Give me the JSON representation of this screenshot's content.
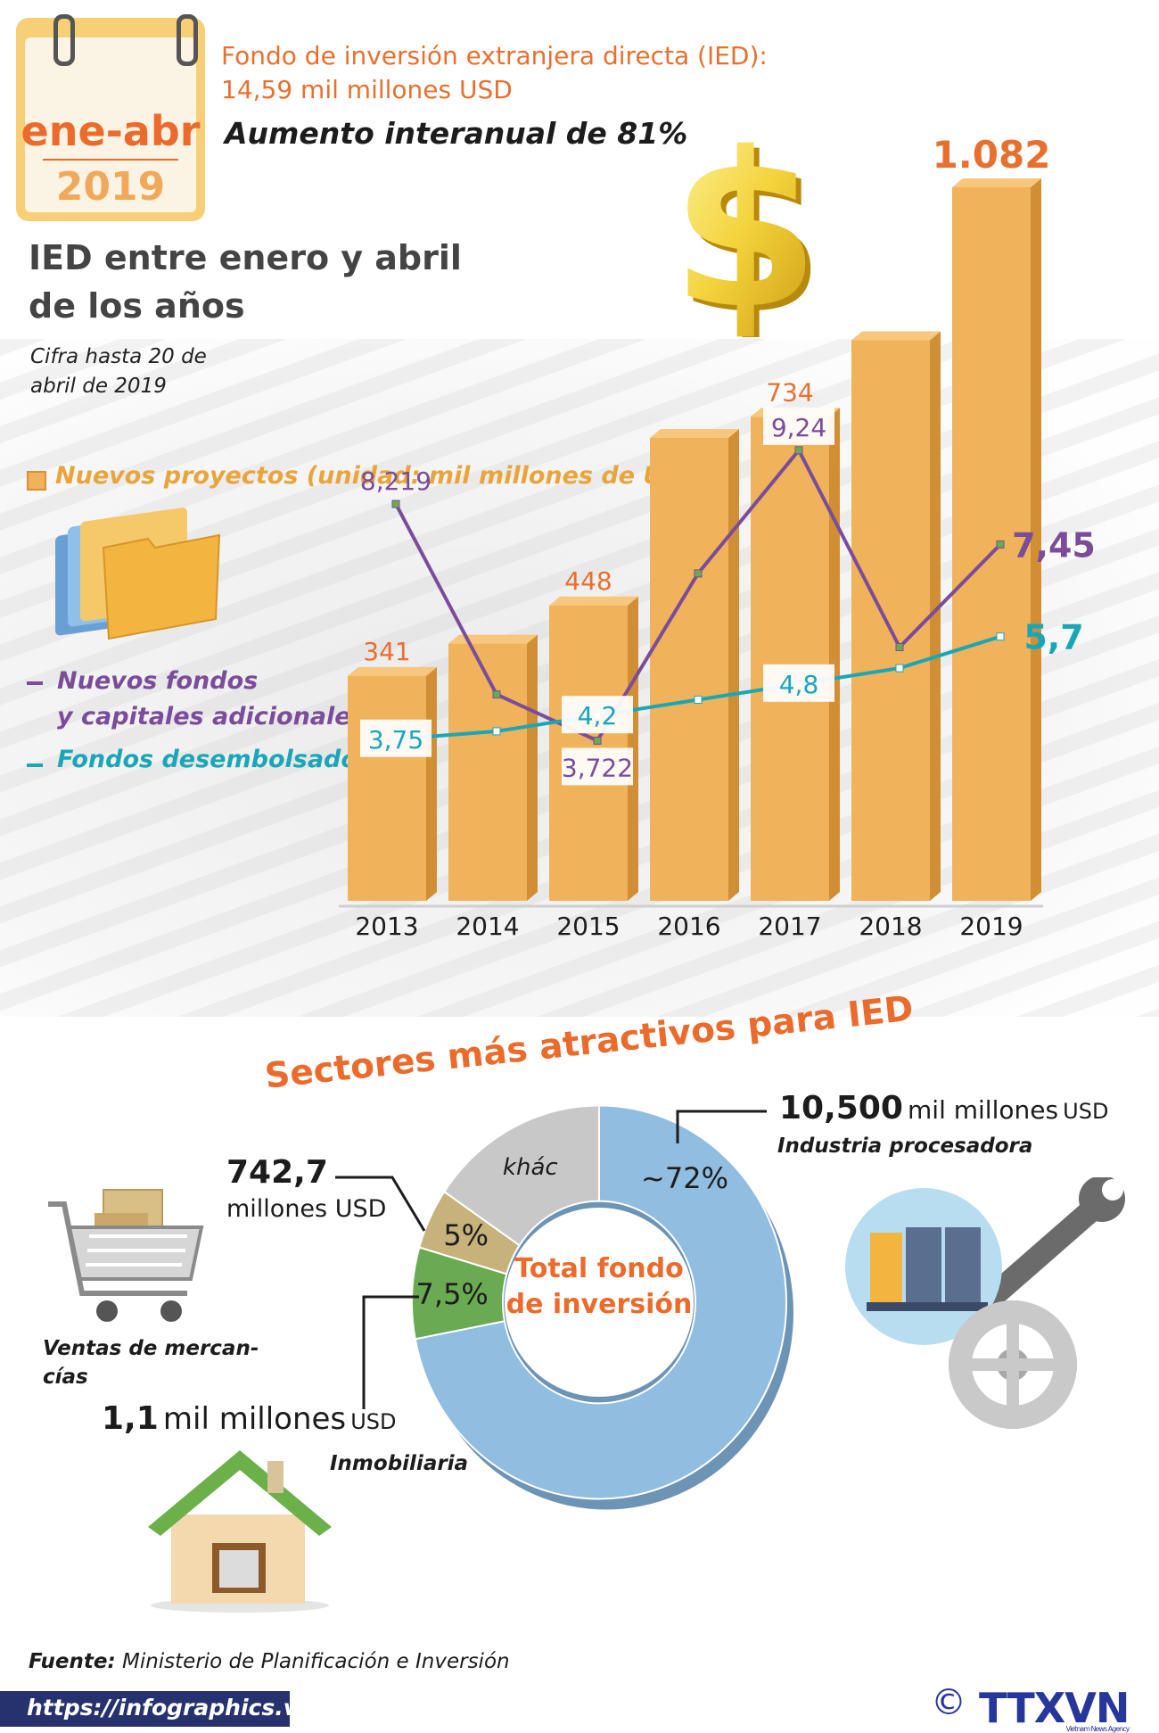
{
  "header": {
    "calendar_period": "ene-abr",
    "calendar_year": "2019",
    "fund_line1": "Fondo de inversión extranjera directa (IED):",
    "fund_line2": "14,59 mil millones USD",
    "increase": "Aumento interanual de 81%"
  },
  "chart_title_1": "IED entre enero y abril",
  "chart_title_2": "de los años",
  "note_1": "Cifra hasta 20 de",
  "note_2": "abril de 2019",
  "legend": {
    "bars": "Nuevos proyectos (unidad: mil millones de USD)",
    "line_purple_1": "Nuevos fondos",
    "line_purple_2": "y capitales adicionales",
    "line_teal": "Fondos desembolsados"
  },
  "chart_data": {
    "type": "bar",
    "categories": [
      "2013",
      "2014",
      "2015",
      "2016",
      "2017",
      "2018",
      "2019"
    ],
    "bars_label": "Nuevos proyectos",
    "bar_values": [
      341,
      null,
      448,
      null,
      734,
      null,
      1082
    ],
    "bar_labels": [
      "341",
      "",
      "448",
      "",
      "734",
      "",
      "1.082"
    ],
    "bar_estimates": [
      341,
      390,
      448,
      702,
      734,
      850,
      1082
    ],
    "lines": [
      {
        "name": "Nuevos fondos y capitales adicionales",
        "color": "#7a4c9a",
        "values": [
          8.219,
          4.6,
          3.722,
          6.9,
          9.24,
          5.5,
          7.45
        ],
        "labels": [
          "8,219",
          "",
          "3,722",
          "",
          "9,24",
          "",
          "7,45"
        ]
      },
      {
        "name": "Fondos desembolsados",
        "color": "#1ba6b8",
        "values": [
          3.75,
          3.9,
          4.2,
          4.5,
          4.8,
          5.1,
          5.7
        ],
        "labels": [
          "3,75",
          "",
          "4,2",
          "",
          "4,8",
          "",
          "5,7"
        ]
      }
    ],
    "bar_color": "#f0b25a"
  },
  "sectors": {
    "title": "Sectores más atractivos para IED",
    "center_line1": "Total fondo",
    "center_line2": "de inversión",
    "chart_data": {
      "type": "pie",
      "slices": [
        {
          "label": "~72%",
          "value": 72,
          "color": "#90bde0"
        },
        {
          "label": "7,5%",
          "value": 7.5,
          "color": "#6aaa52"
        },
        {
          "label": "5%",
          "value": 5,
          "color": "#c6b27a"
        },
        {
          "label": "khác",
          "value": 15.5,
          "color": "#c8c8c8"
        }
      ]
    },
    "industria": {
      "value": "10,500",
      "unit_main": "mil millones",
      "unit_small": "USD",
      "name": "Industria procesadora"
    },
    "ventas": {
      "value": "742,7",
      "unit": "millones USD",
      "name_1": "Ventas de mercan-",
      "name_2": "cías"
    },
    "inmobiliaria": {
      "value": "1,1",
      "unit_main": "mil millones",
      "unit_small": "USD",
      "name": "Inmobiliaria"
    }
  },
  "footer": {
    "source_label": "Fuente:",
    "source_text": "Ministerio de Planificación e Inversión",
    "url": "https://infographics.vn",
    "agency": "TTXVN",
    "agency_sub": "Vietnam News Agency",
    "copyright": "©"
  }
}
